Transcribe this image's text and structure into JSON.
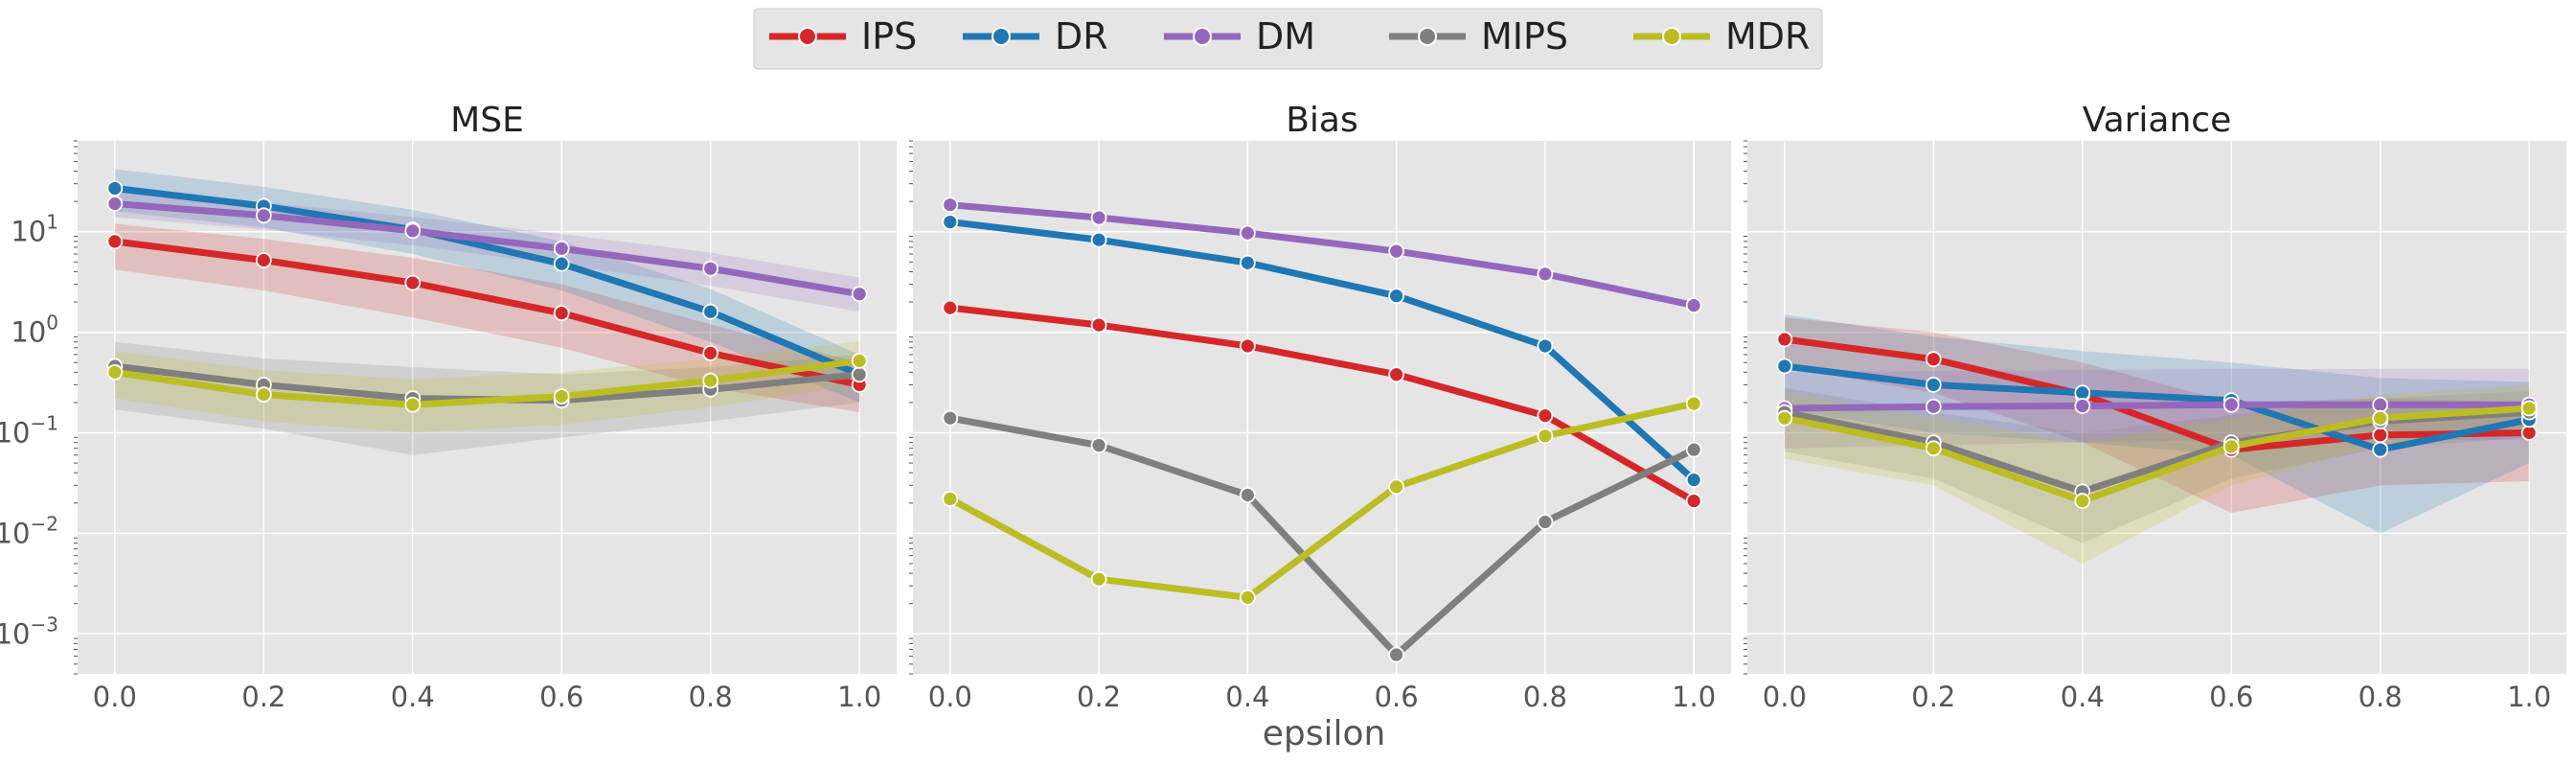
{
  "colors": {
    "IPS": "#d62728",
    "DR": "#1f77b4",
    "DM": "#9467bd",
    "MIPS": "#7f7f7f",
    "MDR": "#bcbd22",
    "panel_bg": "#e5e5e5",
    "grid": "#ffffff",
    "tick_text": "#555555"
  },
  "legend": {
    "placement": "top-center",
    "entries": [
      "IPS",
      "DR",
      "DM",
      "MIPS",
      "MDR"
    ]
  },
  "chart_data": [
    {
      "type": "line",
      "title": "MSE",
      "xlabel": "",
      "ylabel": "",
      "yscale": "log",
      "ylim": [
        0.0004,
        80
      ],
      "xlim": [
        -0.05,
        1.05
      ],
      "x": [
        0.0,
        0.2,
        0.4,
        0.6,
        0.8,
        1.0
      ],
      "xtick_labels": [
        "0.0",
        "0.2",
        "0.4",
        "0.6",
        "0.8",
        "1.0"
      ],
      "yticks": [
        0.001,
        0.01,
        0.1,
        1,
        10
      ],
      "ytick_labels": [
        "10",
        "10",
        "10",
        "10",
        "10"
      ],
      "ytick_exponents": [
        "−3",
        "−2",
        "−1",
        "0",
        "1"
      ],
      "grid": true,
      "series": [
        {
          "name": "IPS",
          "values": [
            8.0,
            5.2,
            3.1,
            1.55,
            0.62,
            0.3
          ],
          "lower": [
            4.2,
            2.6,
            1.4,
            0.7,
            0.28,
            0.16
          ],
          "upper": [
            12.0,
            8.5,
            5.5,
            3.0,
            1.2,
            0.5
          ]
        },
        {
          "name": "DR",
          "values": [
            27.0,
            18.0,
            10.5,
            4.8,
            1.6,
            0.38
          ],
          "lower": [
            16.0,
            11.0,
            6.0,
            2.6,
            0.8,
            0.2
          ],
          "upper": [
            42.0,
            28.0,
            16.5,
            8.0,
            2.7,
            0.6
          ]
        },
        {
          "name": "DM",
          "values": [
            19.0,
            14.5,
            10.2,
            6.8,
            4.3,
            2.4
          ],
          "lower": [
            14.0,
            10.5,
            7.3,
            4.7,
            2.9,
            1.6
          ],
          "upper": [
            25.0,
            19.5,
            14.0,
            9.5,
            6.2,
            3.5
          ]
        },
        {
          "name": "MIPS",
          "values": [
            0.46,
            0.3,
            0.22,
            0.21,
            0.27,
            0.38
          ],
          "lower": [
            0.17,
            0.11,
            0.06,
            0.09,
            0.13,
            0.2
          ],
          "upper": [
            0.8,
            0.55,
            0.45,
            0.38,
            0.45,
            0.6
          ]
        },
        {
          "name": "MDR",
          "values": [
            0.4,
            0.24,
            0.19,
            0.23,
            0.33,
            0.52
          ],
          "lower": [
            0.22,
            0.13,
            0.1,
            0.12,
            0.18,
            0.3
          ],
          "upper": [
            0.65,
            0.42,
            0.34,
            0.4,
            0.55,
            0.82
          ]
        }
      ]
    },
    {
      "type": "line",
      "title": "Bias",
      "xlabel": "epsilon",
      "ylabel": "",
      "yscale": "log",
      "ylim": [
        0.0004,
        80
      ],
      "xlim": [
        -0.05,
        1.05
      ],
      "x": [
        0.0,
        0.2,
        0.4,
        0.6,
        0.8,
        1.0
      ],
      "xtick_labels": [
        "0.0",
        "0.2",
        "0.4",
        "0.6",
        "0.8",
        "1.0"
      ],
      "grid": true,
      "series": [
        {
          "name": "IPS",
          "values": [
            1.75,
            1.18,
            0.73,
            0.38,
            0.148,
            0.021
          ]
        },
        {
          "name": "DR",
          "values": [
            12.5,
            8.3,
            4.9,
            2.3,
            0.73,
            0.034
          ]
        },
        {
          "name": "DM",
          "values": [
            18.5,
            13.8,
            9.7,
            6.4,
            3.8,
            1.85
          ]
        },
        {
          "name": "MIPS",
          "values": [
            0.14,
            0.075,
            0.024,
            0.00062,
            0.013,
            0.068
          ]
        },
        {
          "name": "MDR",
          "values": [
            0.022,
            0.0035,
            0.0023,
            0.029,
            0.093,
            0.195
          ]
        }
      ]
    },
    {
      "type": "line",
      "title": "Variance",
      "xlabel": "",
      "ylabel": "",
      "yscale": "log",
      "ylim": [
        0.0004,
        80
      ],
      "xlim": [
        -0.05,
        1.05
      ],
      "x": [
        0.0,
        0.2,
        0.4,
        0.6,
        0.8,
        1.0
      ],
      "xtick_labels": [
        "0.0",
        "0.2",
        "0.4",
        "0.6",
        "0.8",
        "1.0"
      ],
      "grid": true,
      "series": [
        {
          "name": "IPS",
          "values": [
            0.85,
            0.54,
            0.24,
            0.068,
            0.095,
            0.1
          ],
          "lower": [
            0.45,
            0.25,
            0.08,
            0.016,
            0.03,
            0.033
          ],
          "upper": [
            1.4,
            1.0,
            0.5,
            0.2,
            0.22,
            0.2
          ]
        },
        {
          "name": "DR",
          "values": [
            0.46,
            0.3,
            0.25,
            0.21,
            0.068,
            0.135
          ],
          "lower": [
            0.17,
            0.1,
            0.08,
            0.06,
            0.01,
            0.05
          ],
          "upper": [
            1.5,
            0.9,
            0.65,
            0.5,
            0.35,
            0.32
          ]
        },
        {
          "name": "DM",
          "values": [
            0.175,
            0.182,
            0.185,
            0.19,
            0.19,
            0.19
          ],
          "lower": [
            0.07,
            0.075,
            0.08,
            0.085,
            0.085,
            0.085
          ],
          "upper": [
            0.4,
            0.41,
            0.42,
            0.43,
            0.43,
            0.43
          ]
        },
        {
          "name": "MIPS",
          "values": [
            0.16,
            0.08,
            0.026,
            0.08,
            0.13,
            0.16
          ],
          "lower": [
            0.065,
            0.035,
            0.008,
            0.035,
            0.07,
            0.09
          ],
          "upper": [
            0.28,
            0.16,
            0.1,
            0.15,
            0.22,
            0.26
          ]
        },
        {
          "name": "MDR",
          "values": [
            0.14,
            0.07,
            0.021,
            0.073,
            0.14,
            0.175
          ],
          "lower": [
            0.055,
            0.03,
            0.005,
            0.03,
            0.075,
            0.1
          ],
          "upper": [
            0.25,
            0.14,
            0.08,
            0.14,
            0.24,
            0.3
          ]
        }
      ]
    }
  ]
}
